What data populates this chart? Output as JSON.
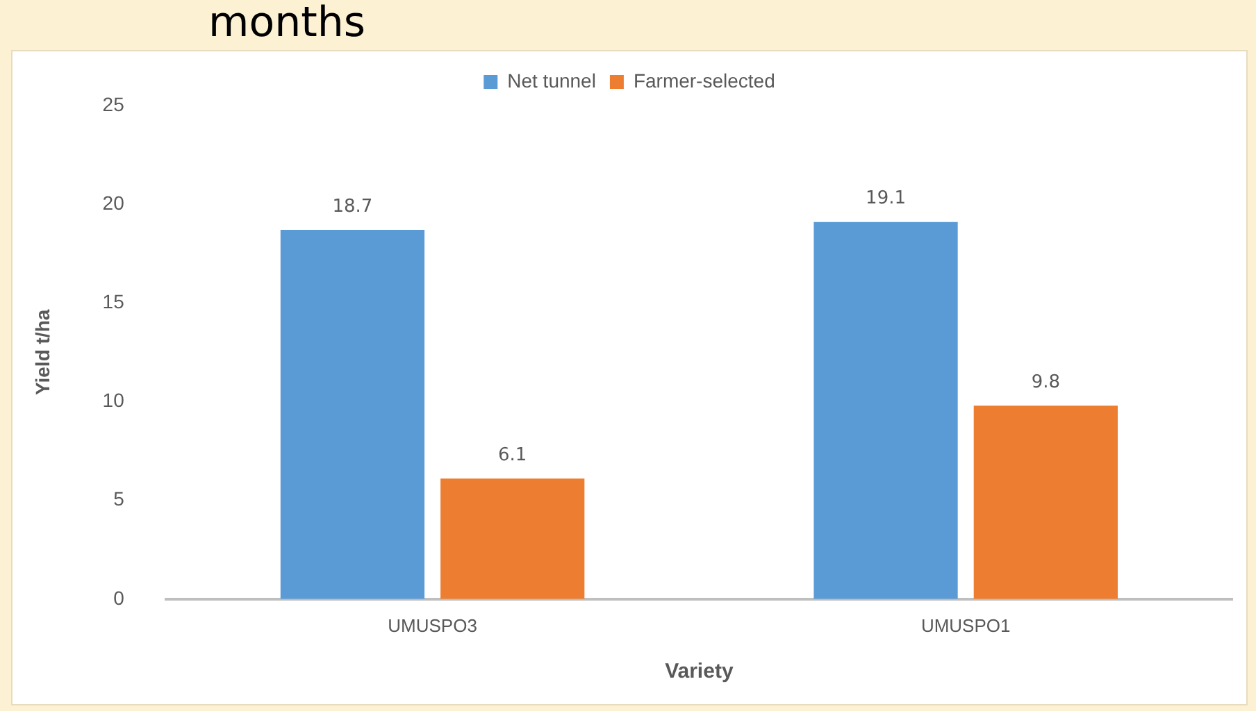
{
  "chart_data": {
    "type": "bar",
    "title": "months",
    "xlabel": "Variety",
    "ylabel": "Yield t/ha",
    "categories": [
      "UMUSPO3",
      "UMUSPO1"
    ],
    "series": [
      {
        "name": "Net tunnel",
        "color": "#5b9bd5",
        "values": [
          18.7,
          19.1
        ]
      },
      {
        "name": "Farmer-selected",
        "color": "#ed7d31",
        "values": [
          6.1,
          9.8
        ]
      }
    ],
    "ylim": [
      0,
      25
    ],
    "yticks": [
      0,
      5,
      10,
      15,
      20,
      25
    ],
    "grid": false,
    "legend": "top",
    "data_labels": true
  }
}
